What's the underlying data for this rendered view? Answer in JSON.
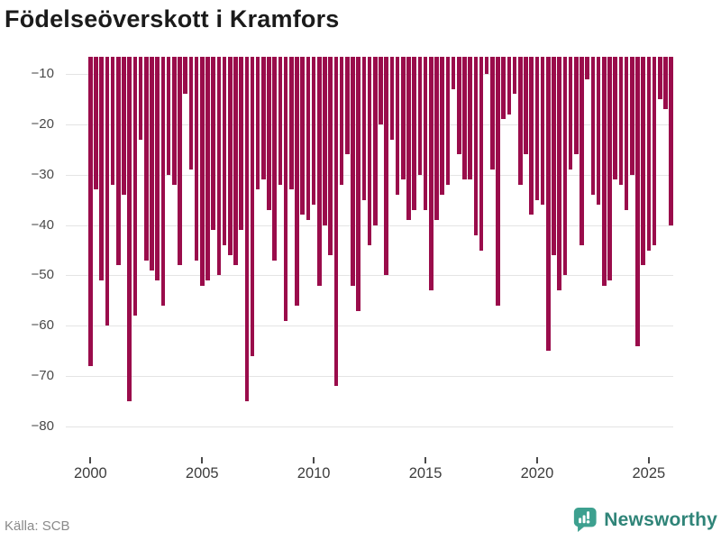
{
  "title": "Födelseöverskott i Kramfors",
  "source_label": "Källa: SCB",
  "branding": {
    "name": "Newsworthy",
    "logo_icon": "speech-bubble-bar-chart"
  },
  "colors": {
    "bar": "#9a0c4b",
    "grid": "#e4e4e4",
    "title_text": "#1b1b1b",
    "axis_text": "#4a4a4a",
    "source_text": "#8a8a8a",
    "brand_teal": "#3da08f",
    "brand_text_teal": "#2f8478",
    "background": "#ffffff"
  },
  "chart_data": {
    "type": "bar",
    "title": "Födelseöverskott i Kramfors",
    "xlabel": "",
    "ylabel": "",
    "interval": "quarterly",
    "x_start": "2000 Q1",
    "x_end": "2026 Q1",
    "ylim": [
      -81.5,
      -6.6
    ],
    "grid": "horizontal",
    "legend": "none",
    "x_tick_labels": [
      "2000",
      "2005",
      "2010",
      "2015",
      "2020",
      "2025"
    ],
    "y_tick_labels": [
      "−10",
      "−20",
      "−30",
      "−40",
      "−50",
      "−60",
      "−70",
      "−80"
    ],
    "y_tick_values": [
      -10,
      -20,
      -30,
      -40,
      -50,
      -60,
      -70,
      -80
    ],
    "values": [
      -68,
      -33,
      -51,
      -60,
      -32,
      -48,
      -34,
      -75,
      -58,
      -23,
      -47,
      -49,
      -51,
      -56,
      -30,
      -32,
      -48,
      -14,
      -29,
      -47,
      -52,
      -51,
      -41,
      -50,
      -44,
      -46,
      -48,
      -41,
      -75,
      -66,
      -33,
      -31,
      -37,
      -47,
      -32,
      -59,
      -33,
      -56,
      -38,
      -39,
      -36,
      -52,
      -40,
      -46,
      -72,
      -32,
      -26,
      -52,
      -57,
      -35,
      -44,
      -40,
      -20,
      -50,
      -23,
      -34,
      -31,
      -39,
      -37,
      -30,
      -37,
      -53,
      -39,
      -34,
      -32,
      -13,
      -26,
      -31,
      -31,
      -42,
      -45,
      -10,
      -29,
      -56,
      -19,
      -18,
      -14,
      -32,
      -26,
      -38,
      -35,
      -36,
      -65,
      -46,
      -53,
      -50,
      -29,
      -26,
      -44,
      -11,
      -34,
      -36,
      -52,
      -51,
      -31,
      -32,
      -37,
      -30,
      -64,
      -48,
      -45,
      -44,
      -15,
      -17,
      -40
    ]
  }
}
